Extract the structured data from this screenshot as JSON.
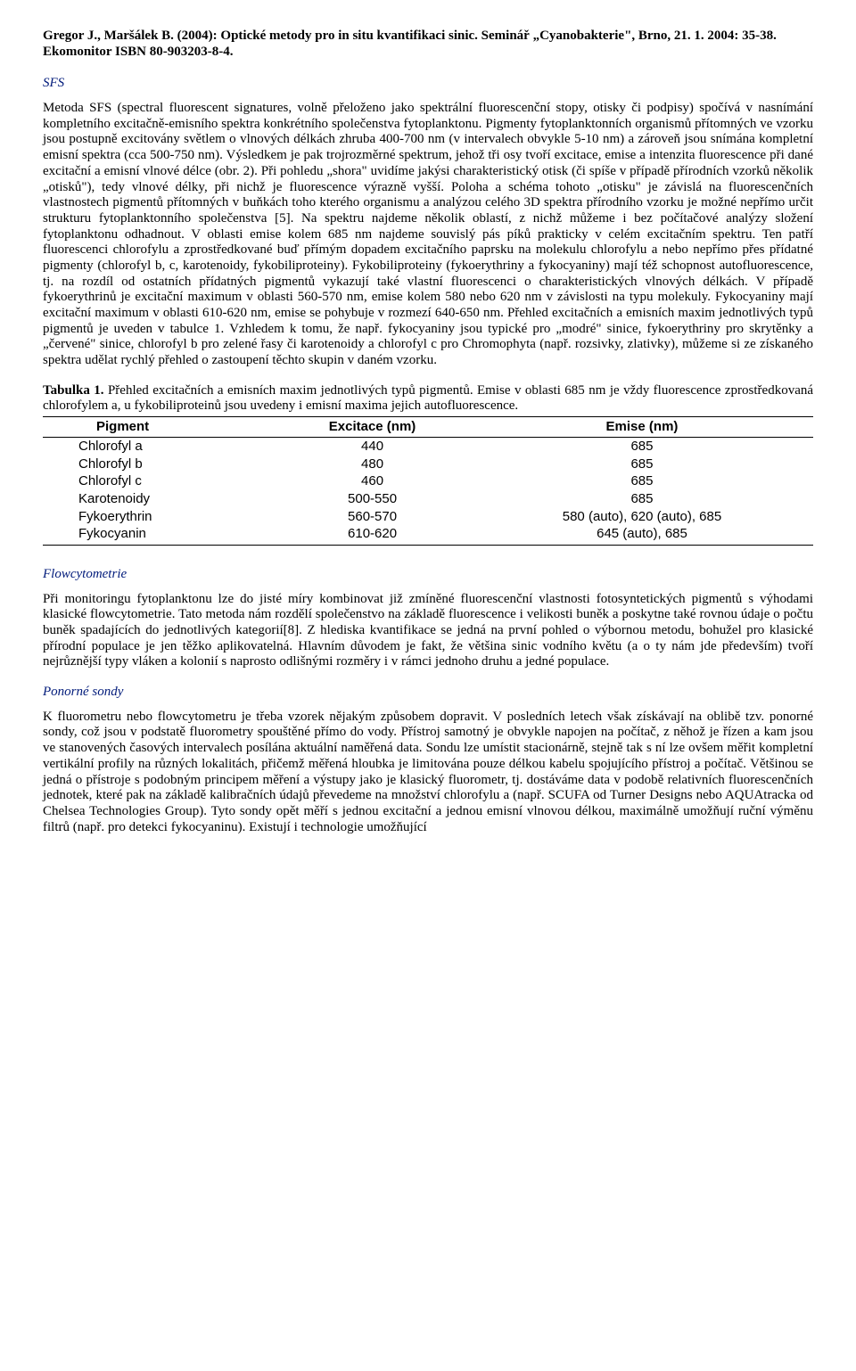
{
  "header": {
    "citation": "Gregor J., Maršálek B. (2004): Optické metody pro in situ kvantifikaci sinic. Seminář „Cyanobakterie\", Brno, 21. 1. 2004: 35-38. Ekomonitor ISBN 80-903203-8-4."
  },
  "sections": {
    "sfs": {
      "title": "SFS",
      "body": "Metoda SFS (spectral fluorescent signatures, volně přeloženo jako spektrální fluorescenční stopy, otisky či podpisy) spočívá v nasnímání kompletního excitačně-emisního spektra konkrétního společenstva fytoplanktonu. Pigmenty fytoplanktonních organismů přítomných ve vzorku jsou postupně excitovány světlem o vlnových délkách zhruba 400-700 nm (v intervalech obvykle 5-10 nm) a zároveň jsou snímána kompletní emisní spektra (cca 500-750 nm). Výsledkem je pak trojrozměrné spektrum, jehož tři osy tvoří excitace, emise a intenzita fluorescence při dané excitační a emisní vlnové délce (obr. 2). Při pohledu „shora\" uvidíme jakýsi charakteristický otisk (či spíše v případě přírodních vzorků několik „otisků\"), tedy vlnové délky, při nichž je fluorescence výrazně vyšší. Poloha a schéma tohoto „otisku\" je závislá na fluorescenčních vlastnostech pigmentů přítomných v buňkách toho kterého organismu a analýzou celého 3D spektra přírodního vzorku je možné nepřímo určit strukturu fytoplanktonního společenstva [5]. Na spektru najdeme několik oblastí, z nichž můžeme i bez počítačové analýzy složení fytoplanktonu odhadnout. V oblasti emise kolem 685 nm najdeme souvislý pás píků prakticky v celém excitačním spektru. Ten patří fluorescenci chlorofylu a zprostředkované buď přímým dopadem excitačního paprsku na molekulu chlorofylu a nebo nepřímo přes přídatné pigmenty (chlorofyl b, c, karotenoidy, fykobiliproteiny). Fykobiliproteiny (fykoerythriny a fykocyaniny) mají též schopnost autofluorescence, tj. na rozdíl od ostatních přídatných pigmentů vykazují také vlastní fluorescenci o charakteristických vlnových délkách. V případě fykoerythrinů je excitační maximum v oblasti 560-570 nm, emise kolem 580 nebo 620 nm v závislosti na typu molekuly. Fykocyaniny mají excitační maximum v oblasti 610-620 nm, emise se pohybuje v rozmezí 640-650 nm. Přehled excitačních a emisních maxim jednotlivých typů pigmentů je uveden v tabulce 1. Vzhledem k tomu, že např. fykocyaniny jsou typické pro „modré\" sinice, fykoerythriny pro skrytěnky a „červené\" sinice, chlorofyl b pro zelené řasy či karotenoidy a chlorofyl c pro Chromophyta (např. rozsivky, zlativky), můžeme si ze získaného spektra udělat rychlý přehled o zastoupení těchto skupin v daném vzorku."
    },
    "flowcytometrie": {
      "title": "Flowcytometrie",
      "body": "Při monitoringu fytoplanktonu lze do jisté míry kombinovat již zmíněné fluorescenční vlastnosti fotosyntetických pigmentů s výhodami klasické flowcytometrie. Tato metoda nám rozdělí společenstvo na základě fluorescence i velikosti buněk a poskytne také rovnou údaje o počtu buněk spadajících do jednotlivých kategorií[8]. Z hlediska kvantifikace se jedná na první pohled o výbornou metodu, bohužel pro klasické přírodní populace je jen těžko aplikovatelná. Hlavním důvodem je fakt, že většina sinic vodního květu (a o ty nám jde především) tvoří nejrůznější typy vláken a kolonií s naprosto odlišnými rozměry i v rámci jednoho druhu a jedné populace."
    },
    "ponorne": {
      "title": "Ponorné sondy",
      "body": "K fluorometru nebo flowcytometru je třeba vzorek nějakým způsobem dopravit. V posledních letech však získávají na oblibě tzv. ponorné sondy, což jsou v podstatě fluorometry spouštěné přímo do vody. Přístroj samotný je obvykle napojen na počítač, z něhož je řízen a kam jsou ve stanovených časových intervalech posílána aktuální naměřená data. Sondu lze umístit stacionárně, stejně tak s ní lze ovšem měřit kompletní vertikální profily na různých lokalitách, přičemž měřená hloubka je limitována pouze délkou kabelu spojujícího přístroj a počítač. Většinou se jedná o přístroje s podobným principem měření a výstupy jako je klasický fluorometr, tj. dostáváme data v podobě relativních fluorescenčních jednotek, které pak na základě kalibračních údajů převedeme na množství chlorofylu a (např. SCUFA od Turner Designs nebo AQUAtracka od Chelsea Technologies Group). Tyto sondy opět měří s jednou excitační a jednou emisní vlnovou délkou, maximálně umožňují ruční výměnu filtrů (např. pro detekci fykocyaninu). Existují i technologie umožňující"
    }
  },
  "table": {
    "caption_bold": "Tabulka 1.",
    "caption_rest": " Přehled excitačních a emisních maxim jednotlivých typů pigmentů. Emise v oblasti 685 nm je vždy fluorescence zprostředkovaná chlorofylem a, u fykobiliproteinů jsou uvedeny i emisní maxima jejich autofluorescence.",
    "columns": [
      "Pigment",
      "Excitace (nm)",
      "Emise (nm)"
    ],
    "rows": [
      [
        "Chlorofyl a",
        "440",
        "685"
      ],
      [
        "Chlorofyl b",
        "480",
        "685"
      ],
      [
        "Chlorofyl c",
        "460",
        "685"
      ],
      [
        "Karotenoidy",
        "500-550",
        "685"
      ],
      [
        "Fykoerythrin",
        "560-570",
        "580 (auto), 620 (auto), 685"
      ],
      [
        "Fykocyanin",
        "610-620",
        "645 (auto), 685"
      ]
    ]
  }
}
